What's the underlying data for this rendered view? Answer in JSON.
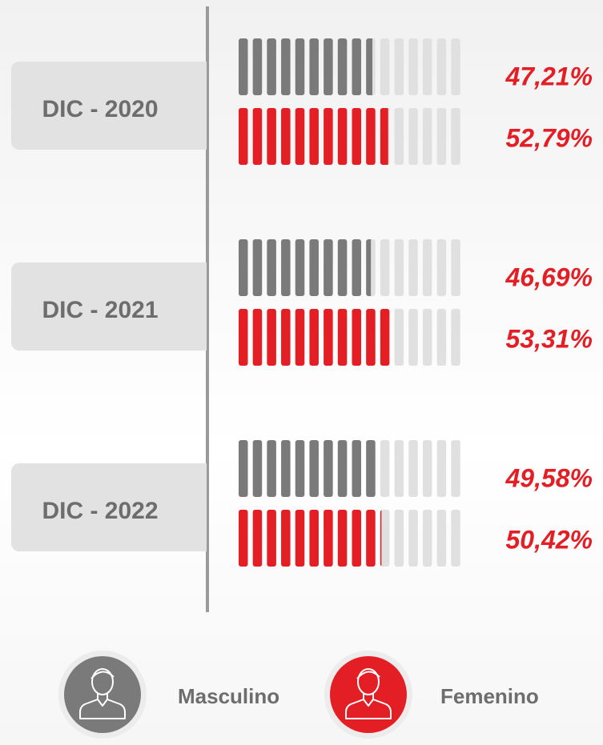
{
  "chart_data": {
    "type": "pictogram_bar",
    "categories": [
      "DIC - 2020",
      "DIC - 2021",
      "DIC - 2022"
    ],
    "series": [
      {
        "name": "Masculino",
        "color": "#7a7a7a",
        "values": [
          47.21,
          46.69,
          49.58
        ],
        "value_labels": [
          "47,21%",
          "46,69%",
          "49,58%"
        ]
      },
      {
        "name": "Femenino",
        "color": "#e31e24",
        "values": [
          52.79,
          53.31,
          50.42
        ],
        "value_labels": [
          "52,79%",
          "53,31%",
          "50,42%"
        ]
      }
    ],
    "xlim": [
      0,
      80
    ]
  }
}
